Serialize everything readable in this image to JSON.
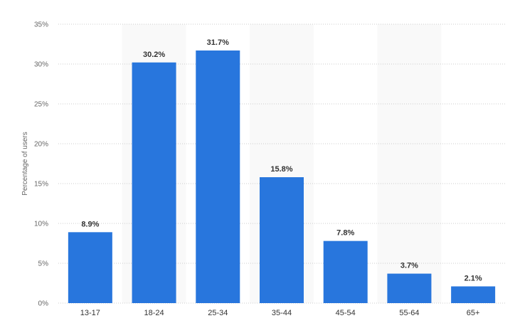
{
  "chart_data": {
    "type": "bar",
    "title": "",
    "xlabel": "",
    "ylabel": "Percentage of users",
    "categories": [
      "13-17",
      "18-24",
      "25-34",
      "35-44",
      "45-54",
      "55-64",
      "65+"
    ],
    "values": [
      8.9,
      30.2,
      31.7,
      15.8,
      7.8,
      3.7,
      2.1
    ],
    "data_labels": [
      "8.9%",
      "30.2%",
      "31.7%",
      "15.8%",
      "7.8%",
      "3.7%",
      "2.1%"
    ],
    "ylim": [
      0,
      35
    ],
    "y_ticks": [
      0,
      5,
      10,
      15,
      20,
      25,
      30,
      35
    ],
    "y_tick_labels": [
      "0%",
      "5%",
      "10%",
      "15%",
      "20%",
      "25%",
      "30%",
      "35%"
    ],
    "grid": true,
    "legend": "none",
    "colors": {
      "bar": "#2876dd",
      "band": "#f9f9f9",
      "grid": "#cccccc"
    }
  }
}
